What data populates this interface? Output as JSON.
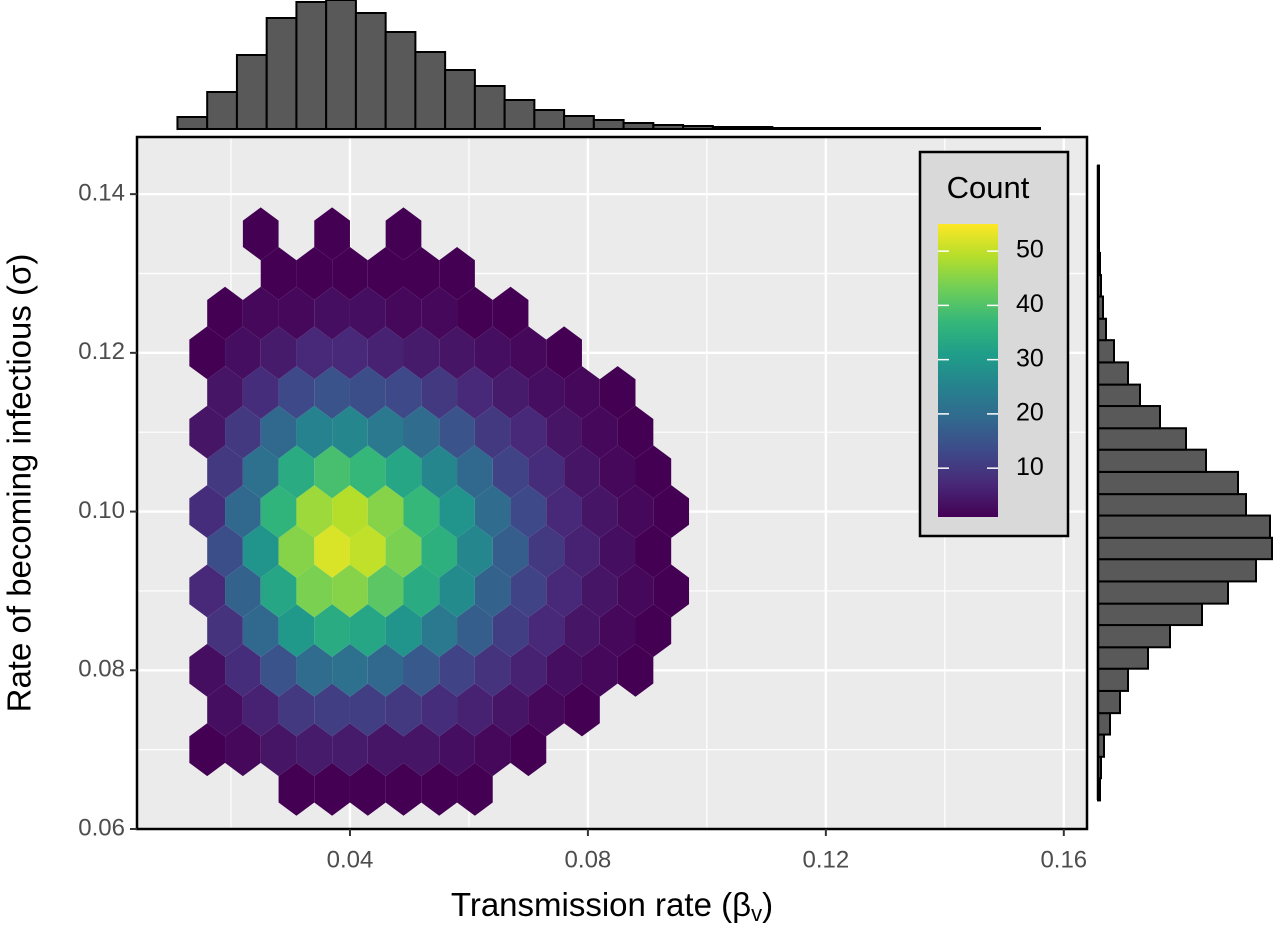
{
  "chart_data": {
    "type": "hexbin",
    "xlabel_parts": [
      "Transmission rate (β",
      "v",
      ")"
    ],
    "ylabel": "Rate of becoming infectious (σ)",
    "xlim": [
      0.0042,
      0.1639
    ],
    "ylim": [
      0.06,
      0.1472
    ],
    "xticks": [
      0.04,
      0.08,
      0.12,
      0.16
    ],
    "yticks": [
      0.06,
      0.08,
      {
        "value": 0.1,
        "label": "0.10"
      },
      0.12,
      0.14
    ],
    "grid": true,
    "hex_width": 0.006,
    "row_height": 0.005,
    "legend": {
      "title": "Count",
      "ticks": [
        10,
        20,
        30,
        40,
        50
      ],
      "clim": [
        1,
        55
      ],
      "position": "top-right"
    },
    "hexbins": [
      {
        "y": 0.065,
        "x": [
          0.031,
          0.037,
          0.043,
          0.049,
          0.055,
          0.061
        ],
        "count": [
          1,
          1,
          1,
          1,
          1,
          1
        ]
      },
      {
        "y": 0.07,
        "x": [
          0.016,
          0.022,
          0.028,
          0.034,
          0.04,
          0.046,
          0.052,
          0.058,
          0.064,
          0.07
        ],
        "count": [
          1,
          2,
          4,
          5,
          5,
          4,
          4,
          3,
          2,
          1
        ]
      },
      {
        "y": 0.075,
        "x": [
          0.019,
          0.025,
          0.031,
          0.037,
          0.043,
          0.049,
          0.055,
          0.061,
          0.067,
          0.073,
          0.079
        ],
        "count": [
          3,
          6,
          10,
          11,
          11,
          10,
          8,
          6,
          4,
          2,
          1
        ]
      },
      {
        "y": 0.08,
        "x": [
          0.016,
          0.022,
          0.028,
          0.034,
          0.04,
          0.046,
          0.052,
          0.058,
          0.064,
          0.07,
          0.076,
          0.082,
          0.088
        ],
        "count": [
          3,
          8,
          15,
          20,
          21,
          19,
          16,
          12,
          9,
          6,
          3,
          2,
          1
        ]
      },
      {
        "y": 0.085,
        "x": [
          0.019,
          0.025,
          0.031,
          0.037,
          0.043,
          0.049,
          0.055,
          0.061,
          0.067,
          0.073,
          0.079,
          0.085,
          0.091
        ],
        "count": [
          9,
          19,
          30,
          34,
          33,
          29,
          23,
          17,
          11,
          7,
          4,
          2,
          1
        ]
      },
      {
        "y": 0.09,
        "x": [
          0.016,
          0.022,
          0.028,
          0.034,
          0.04,
          0.046,
          0.052,
          0.058,
          0.064,
          0.07,
          0.076,
          0.082,
          0.088,
          0.094
        ],
        "count": [
          7,
          18,
          33,
          44,
          45,
          41,
          34,
          27,
          18,
          12,
          7,
          4,
          2,
          1
        ]
      },
      {
        "y": 0.095,
        "x": [
          0.019,
          0.025,
          0.031,
          0.037,
          0.043,
          0.049,
          0.055,
          0.061,
          0.067,
          0.073,
          0.079,
          0.085,
          0.091
        ],
        "count": [
          14,
          29,
          45,
          52,
          50,
          44,
          35,
          26,
          17,
          10,
          6,
          3,
          1
        ]
      },
      {
        "y": 0.1,
        "x": [
          0.016,
          0.022,
          0.028,
          0.034,
          0.04,
          0.046,
          0.052,
          0.058,
          0.064,
          0.07,
          0.076,
          0.082,
          0.088,
          0.094
        ],
        "count": [
          8,
          19,
          36,
          47,
          49,
          45,
          37,
          29,
          20,
          13,
          7,
          4,
          2,
          1
        ]
      },
      {
        "y": 0.105,
        "x": [
          0.019,
          0.025,
          0.031,
          0.037,
          0.043,
          0.049,
          0.055,
          0.061,
          0.067,
          0.073,
          0.079,
          0.085,
          0.091
        ],
        "count": [
          10,
          21,
          34,
          39,
          37,
          33,
          26,
          19,
          12,
          8,
          4,
          2,
          1
        ]
      },
      {
        "y": 0.11,
        "x": [
          0.016,
          0.022,
          0.028,
          0.034,
          0.04,
          0.046,
          0.052,
          0.058,
          0.064,
          0.07,
          0.076,
          0.082,
          0.088
        ],
        "count": [
          4,
          10,
          19,
          25,
          26,
          23,
          20,
          15,
          10,
          7,
          4,
          2,
          1
        ]
      },
      {
        "y": 0.115,
        "x": [
          0.019,
          0.025,
          0.031,
          0.037,
          0.043,
          0.049,
          0.055,
          0.061,
          0.067,
          0.073,
          0.079,
          0.085
        ],
        "count": [
          4,
          8,
          13,
          15,
          14,
          13,
          10,
          7,
          5,
          3,
          2,
          1
        ]
      },
      {
        "y": 0.12,
        "x": [
          0.016,
          0.022,
          0.028,
          0.034,
          0.04,
          0.046,
          0.052,
          0.058,
          0.064,
          0.07,
          0.076
        ],
        "count": [
          1,
          3,
          5,
          7,
          7,
          6,
          5,
          4,
          3,
          2,
          1
        ]
      },
      {
        "y": 0.125,
        "x": [
          0.019,
          0.025,
          0.031,
          0.037,
          0.043,
          0.049,
          0.055,
          0.061,
          0.067
        ],
        "count": [
          1,
          2,
          2,
          3,
          3,
          2,
          2,
          1,
          1
        ]
      },
      {
        "y": 0.13,
        "x": [
          0.028,
          0.034,
          0.04,
          0.046,
          0.052,
          0.058
        ],
        "count": [
          1,
          1,
          1,
          1,
          1,
          1
        ]
      },
      {
        "y": 0.135,
        "x": [
          0.025,
          0.037,
          0.049
        ],
        "count": [
          1,
          1,
          1
        ]
      }
    ],
    "top_histogram": {
      "bins": [
        0.011,
        0.016,
        0.021,
        0.026,
        0.031,
        0.036,
        0.041,
        0.046,
        0.051,
        0.056,
        0.061,
        0.066,
        0.071,
        0.076,
        0.081,
        0.086,
        0.091,
        0.096,
        0.101,
        0.106,
        0.111,
        0.116,
        0.121,
        0.126,
        0.131,
        0.136,
        0.141,
        0.146,
        0.151,
        0.156
      ],
      "counts": [
        12,
        37,
        74,
        111,
        127,
        129,
        116,
        97,
        77,
        59,
        43,
        29,
        19,
        13,
        9,
        6,
        4,
        3,
        2,
        2,
        1,
        1,
        1,
        1,
        1,
        1,
        1,
        1,
        1
      ]
    },
    "right_histogram": {
      "bins": [
        0.0636,
        0.0664,
        0.0691,
        0.0719,
        0.0746,
        0.0774,
        0.0802,
        0.0829,
        0.0857,
        0.0884,
        0.0912,
        0.094,
        0.0967,
        0.0995,
        0.1022,
        0.105,
        0.1078,
        0.1105,
        0.1133,
        0.116,
        0.1188,
        0.1216,
        0.1243,
        0.1271,
        0.1298,
        0.1326,
        0.1354,
        0.1381,
        0.1409,
        0.1436
      ],
      "counts": [
        2,
        3,
        6,
        12,
        22,
        30,
        50,
        72,
        104,
        130,
        158,
        174,
        172,
        148,
        140,
        108,
        88,
        62,
        42,
        30,
        16,
        8,
        5,
        3,
        2,
        1,
        1,
        1,
        1
      ]
    }
  }
}
